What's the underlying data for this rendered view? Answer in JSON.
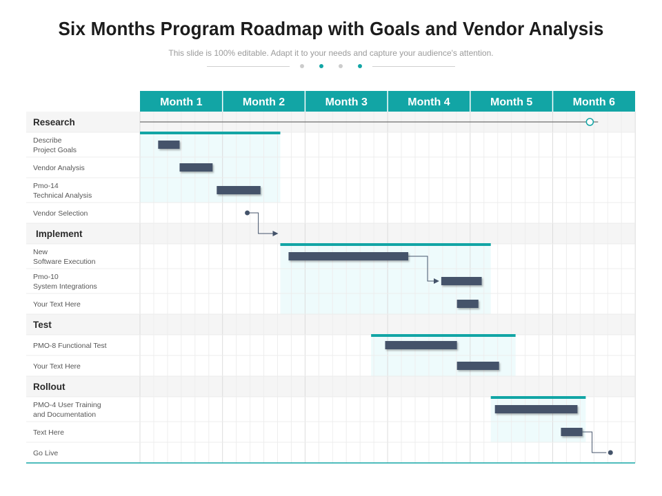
{
  "header": {
    "title": "Six Months Program Roadmap with Goals and Vendor Analysis",
    "subtitle": "This slide is 100% editable. Adapt it to your needs and capture your audience's attention."
  },
  "colors": {
    "teal": "#12a5a5",
    "bar": "#44536a",
    "panel": "#eefbfc",
    "grid": "#e6e6e6",
    "section_bg": "#f5f5f5"
  },
  "months": [
    "Month 1",
    "Month 2",
    "Month 3",
    "Month 4",
    "Month 5",
    "Month 6"
  ],
  "rows": [
    {
      "type": "section",
      "label": "Research"
    },
    {
      "type": "task",
      "label": "Describe\nProject Goals"
    },
    {
      "type": "task",
      "label": "Vendor Analysis"
    },
    {
      "type": "task",
      "label": "Pmo-14\nTechnical Analysis"
    },
    {
      "type": "task",
      "label": "Vendor Selection"
    },
    {
      "type": "section",
      "label": "Implement"
    },
    {
      "type": "task",
      "label": "New\nSoftware Execution"
    },
    {
      "type": "task",
      "label": "Pmo-10\nSystem Integrations"
    },
    {
      "type": "task",
      "label": "Your Text Here"
    },
    {
      "type": "section",
      "label": "Test"
    },
    {
      "type": "task",
      "label": "PMO-8 Functional Test"
    },
    {
      "type": "task",
      "label": "Your Text Here"
    },
    {
      "type": "section",
      "label": "Rollout"
    },
    {
      "type": "task",
      "label": "PMO-4 User Training\nand Documentation"
    },
    {
      "type": "task",
      "label": "Text Here"
    },
    {
      "type": "task",
      "label": "Go Live"
    }
  ],
  "phases": [
    {
      "name": "Research",
      "start": 0.0,
      "end": 1.7,
      "first_row": 1,
      "last_row": 3
    },
    {
      "name": "Implement",
      "start": 1.7,
      "end": 4.25,
      "first_row": 6,
      "last_row": 8
    },
    {
      "name": "Test",
      "start": 2.8,
      "end": 4.55,
      "first_row": 10,
      "last_row": 11
    },
    {
      "name": "Rollout",
      "start": 4.25,
      "end": 5.4,
      "first_row": 13,
      "last_row": 14
    }
  ],
  "tasks": [
    {
      "row": 1,
      "start": 0.22,
      "end": 0.48
    },
    {
      "row": 2,
      "start": 0.48,
      "end": 0.88
    },
    {
      "row": 3,
      "start": 0.93,
      "end": 1.46
    },
    {
      "row": 6,
      "start": 1.8,
      "end": 3.25
    },
    {
      "row": 7,
      "start": 3.65,
      "end": 4.14
    },
    {
      "row": 8,
      "start": 3.84,
      "end": 4.1
    },
    {
      "row": 10,
      "start": 2.97,
      "end": 3.84
    },
    {
      "row": 11,
      "start": 3.84,
      "end": 4.35
    },
    {
      "row": 13,
      "start": 4.3,
      "end": 5.3
    },
    {
      "row": 14,
      "start": 5.1,
      "end": 5.36
    }
  ],
  "links": [
    {
      "kind": "dot-start",
      "row": 4,
      "at": 1.3,
      "to_row": 5,
      "to": 1.7
    },
    {
      "kind": "end-arrow",
      "from_row": 6,
      "from": 3.25,
      "to_row": 7,
      "to": 3.65
    },
    {
      "kind": "end-dot",
      "from_row": 14,
      "from": 5.36,
      "to_row": 15,
      "to": 5.7
    }
  ],
  "milestone_line": {
    "row": 0,
    "start": 0.0,
    "end": 5.55,
    "milestone_at": 5.45
  }
}
